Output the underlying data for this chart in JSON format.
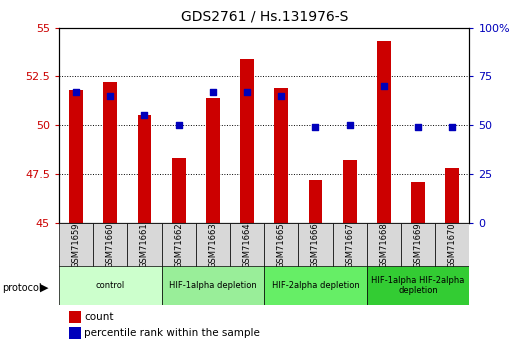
{
  "title": "GDS2761 / Hs.131976-S",
  "samples": [
    "GSM71659",
    "GSM71660",
    "GSM71661",
    "GSM71662",
    "GSM71663",
    "GSM71664",
    "GSM71665",
    "GSM71666",
    "GSM71667",
    "GSM71668",
    "GSM71669",
    "GSM71670"
  ],
  "count_values": [
    51.8,
    52.2,
    50.5,
    48.3,
    51.4,
    53.4,
    51.9,
    47.2,
    48.2,
    54.3,
    47.1,
    47.8
  ],
  "percentile_values": [
    67,
    65,
    55,
    50,
    67,
    67,
    65,
    49,
    50,
    70,
    49,
    49
  ],
  "ylim_left": [
    45,
    55
  ],
  "ylim_right": [
    0,
    100
  ],
  "yticks_left": [
    45,
    47.5,
    50,
    52.5,
    55
  ],
  "ytick_labels_left": [
    "45",
    "47.5",
    "50",
    "52.5",
    "55"
  ],
  "yticks_right": [
    0,
    25,
    50,
    75,
    100
  ],
  "ytick_labels_right": [
    "0",
    "25",
    "50",
    "75",
    "100%"
  ],
  "bar_color": "#cc0000",
  "dot_color": "#0000bb",
  "bar_width": 0.4,
  "protocol_groups": [
    {
      "label": "control",
      "start": 0,
      "end": 2,
      "color": "#ccffcc"
    },
    {
      "label": "HIF-1alpha depletion",
      "start": 3,
      "end": 5,
      "color": "#99ee99"
    },
    {
      "label": "HIF-2alpha depletion",
      "start": 6,
      "end": 8,
      "color": "#66ee66"
    },
    {
      "label": "HIF-1alpha HIF-2alpha\ndepletion",
      "start": 9,
      "end": 11,
      "color": "#33cc33"
    }
  ],
  "protocol_label": "protocol",
  "legend_count_label": "count",
  "legend_pct_label": "percentile rank within the sample",
  "tick_label_color_left": "#cc0000",
  "tick_label_color_right": "#0000bb",
  "plot_bg": "#ffffff",
  "box_bg": "#d8d8d8"
}
